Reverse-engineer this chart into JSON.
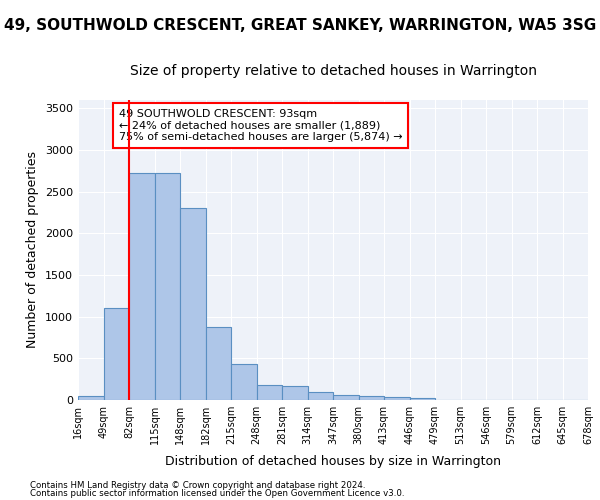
{
  "title": "49, SOUTHWOLD CRESCENT, GREAT SANKEY, WARRINGTON, WA5 3SG",
  "subtitle": "Size of property relative to detached houses in Warrington",
  "xlabel": "Distribution of detached houses by size in Warrington",
  "ylabel": "Number of detached properties",
  "bar_values": [
    50,
    1100,
    2730,
    2730,
    2300,
    880,
    430,
    175,
    170,
    95,
    65,
    50,
    35,
    25,
    0,
    0,
    0,
    0,
    0,
    0
  ],
  "bar_color": "#aec6e8",
  "bar_edgecolor": "#5a8fc2",
  "tick_labels": [
    "16sqm",
    "49sqm",
    "82sqm",
    "115sqm",
    "148sqm",
    "182sqm",
    "215sqm",
    "248sqm",
    "281sqm",
    "314sqm",
    "347sqm",
    "380sqm",
    "413sqm",
    "446sqm",
    "479sqm",
    "513sqm",
    "546sqm",
    "579sqm",
    "612sqm",
    "645sqm",
    "678sqm"
  ],
  "ylim": [
    0,
    3600
  ],
  "yticks": [
    0,
    500,
    1000,
    1500,
    2000,
    2500,
    3000,
    3500
  ],
  "property_line_x": 2,
  "property_line_label": "49 SOUTHWOLD CRESCENT: 93sqm",
  "annotation_line1": "← 24% of detached houses are smaller (1,889)",
  "annotation_line2": "75% of semi-detached houses are larger (5,874) →",
  "footer_line1": "Contains HM Land Registry data © Crown copyright and database right 2024.",
  "footer_line2": "Contains public sector information licensed under the Open Government Licence v3.0.",
  "background_color": "#eef2f9",
  "grid_color": "#ffffff",
  "title_fontsize": 11,
  "subtitle_fontsize": 10,
  "xlabel_fontsize": 9,
  "ylabel_fontsize": 9
}
